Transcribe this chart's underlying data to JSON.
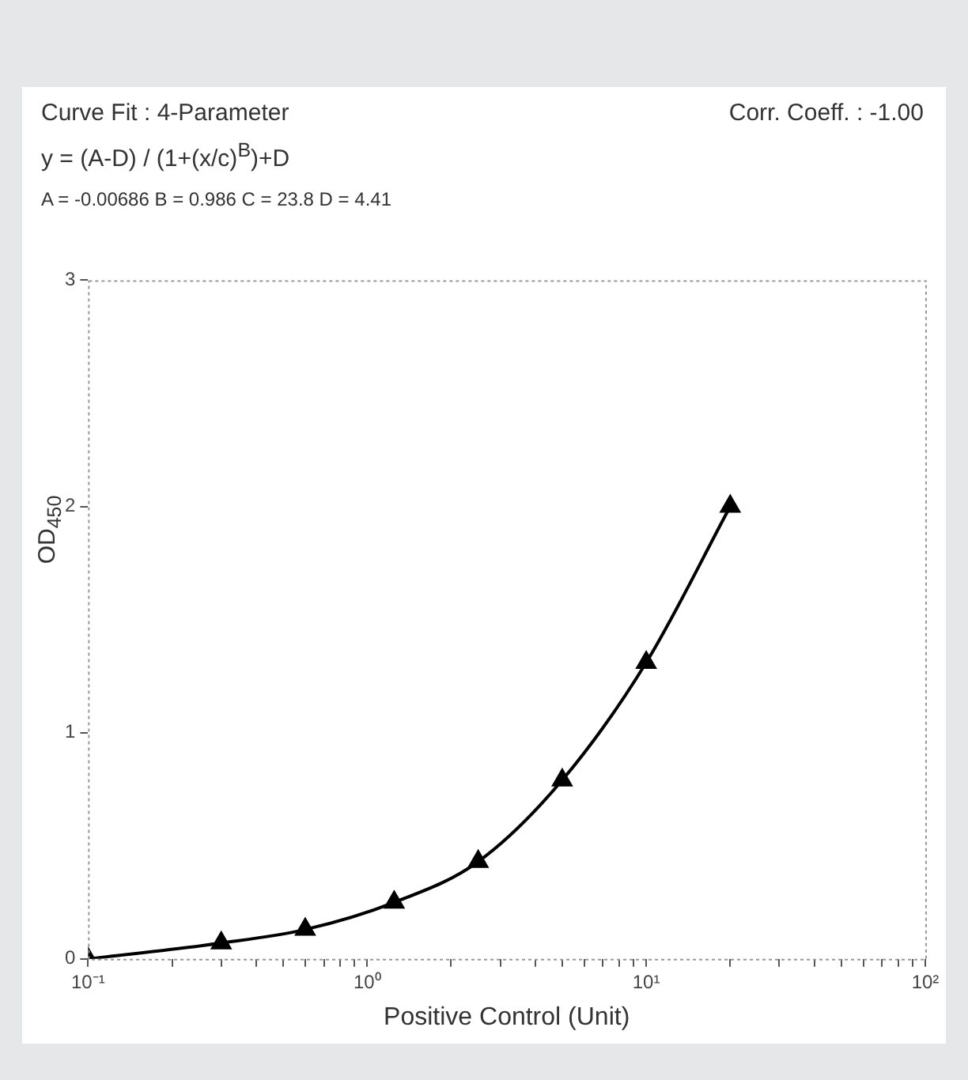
{
  "chart_data": {
    "type": "line",
    "title": "Curve Fit : 4-Parameter",
    "annotations": [
      "Corr. Coeff. : -1.00",
      "y = (A-D) / (1+(x/c)$^{B}$)+D",
      "A = -0.00686 B = 0.986 C = 23.8 D = 4.41"
    ],
    "xlabel": "Positive Control (Unit)",
    "ylabel": "OD$_{450}$",
    "x": [
      0.1,
      0.3,
      0.6,
      1.25,
      2.5,
      5,
      10,
      20
    ],
    "series": [
      {
        "color": "#000000",
        "values": [
          0,
          0.07,
          0.13,
          0.25,
          0.43,
          0.79,
          1.31,
          2.0
        ]
      }
    ],
    "log": "x",
    "xlim": [
      0.1,
      100
    ],
    "xticks": [
      {
        "value": 0.1,
        "label": "10⁻¹"
      },
      {
        "value": 0.2,
        "label": null
      },
      {
        "value": 0.3,
        "label": null
      },
      {
        "value": 0.4,
        "label": null
      },
      {
        "value": 0.5,
        "label": null
      },
      {
        "value": 0.6,
        "label": null
      },
      {
        "value": 0.7,
        "label": null
      },
      {
        "value": 0.8,
        "label": null
      },
      {
        "value": 0.9,
        "label": null
      },
      {
        "value": 1,
        "label": "10⁰"
      },
      {
        "value": 2,
        "label": null
      },
      {
        "value": 3,
        "label": null
      },
      {
        "value": 4,
        "label": null
      },
      {
        "value": 5,
        "label": null
      },
      {
        "value": 6,
        "label": null
      },
      {
        "value": 7,
        "label": null
      },
      {
        "value": 8,
        "label": null
      },
      {
        "value": 9,
        "label": null
      },
      {
        "value": 10,
        "label": "10¹"
      },
      {
        "value": 20,
        "label": null
      },
      {
        "value": 30,
        "label": null
      },
      {
        "value": 40,
        "label": null
      },
      {
        "value": 50,
        "label": null
      },
      {
        "value": 60,
        "label": null
      },
      {
        "value": 70,
        "label": null
      },
      {
        "value": 80,
        "label": null
      },
      {
        "value": 90,
        "label": null
      },
      {
        "value": 100,
        "label": "10²"
      }
    ],
    "ylim": [
      0,
      3
    ],
    "yticks": [
      0,
      1,
      2,
      3
    ],
    "grid": false,
    "legend": false,
    "marker": "triangle",
    "line_style": "solid"
  }
}
